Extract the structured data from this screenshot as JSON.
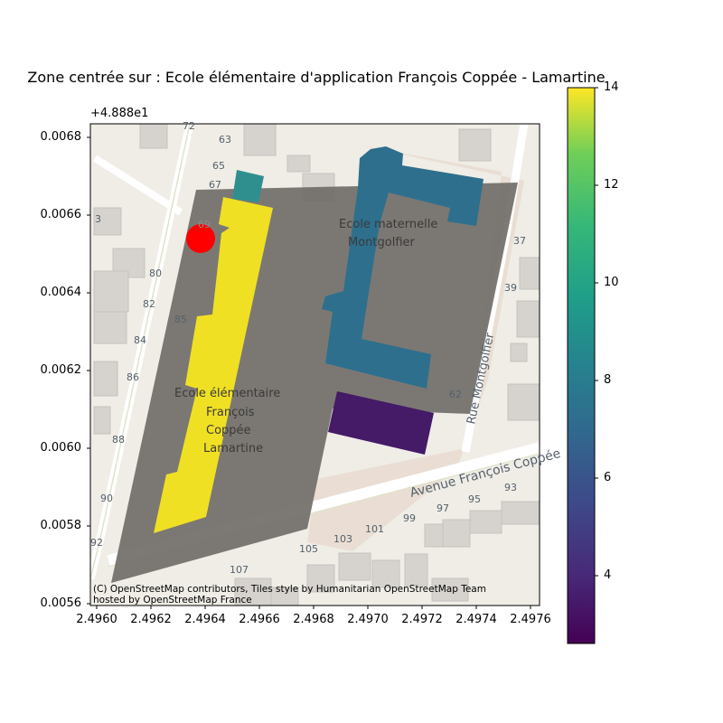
{
  "title": "Zone centrée sur : Ecole élémentaire d'application François Coppée - Lamartine",
  "axis": {
    "y_offset": "+4.888e1",
    "y_ticks": [
      "0.0068",
      "0.0066",
      "0.0064",
      "0.0062",
      "0.0060",
      "0.0058",
      "0.0056"
    ],
    "x_ticks": [
      "2.4960",
      "2.4962",
      "2.4964",
      "2.4966",
      "2.4968",
      "2.4970",
      "2.4972",
      "2.4974",
      "2.4976"
    ]
  },
  "colorbar": {
    "ticks": [
      "14",
      "12",
      "10",
      "8",
      "6",
      "4"
    ],
    "range": [
      2.6,
      14
    ],
    "colormap": "viridis"
  },
  "attribution": {
    "line1": "(C) OpenStreetMap contributors, Tiles style by Humanitarian OpenStreetMap Team",
    "line2": "hosted by OpenStreetMap France"
  },
  "basemap_labels": {
    "street_1": "Avenue François Coppée",
    "street_2": "Rue Montgolfier",
    "school_1_l1": "Ecole maternelle",
    "school_1_l2": "Montgolfier",
    "school_2_l1": "Ecole élémentaire",
    "school_2_l2": "François",
    "school_2_l3": "Coppée",
    "school_2_l4": "Lamartine",
    "num_63": "63",
    "num_65": "65",
    "num_67": "67",
    "num_69": "69",
    "num_72": "72",
    "num_80": "80",
    "num_82": "82",
    "num_84": "84",
    "num_85": "85",
    "num_86": "86",
    "num_88": "88",
    "num_90": "90",
    "num_92": "92",
    "num_93": "93",
    "num_95": "95",
    "num_97": "97",
    "num_99": "99",
    "num_101": "101",
    "num_103": "103",
    "num_105": "105",
    "num_107": "107",
    "num_62": "62",
    "num_37": "37",
    "num_39": "39",
    "num_3": "3"
  },
  "colors": {
    "yellow_building": "#f0e024",
    "teal_building": "#2f8f8f",
    "blue_building": "#2e6f8e",
    "purple_building": "#451a66",
    "zone_overlay": "#6e6a66",
    "marker": "#ff0000"
  }
}
